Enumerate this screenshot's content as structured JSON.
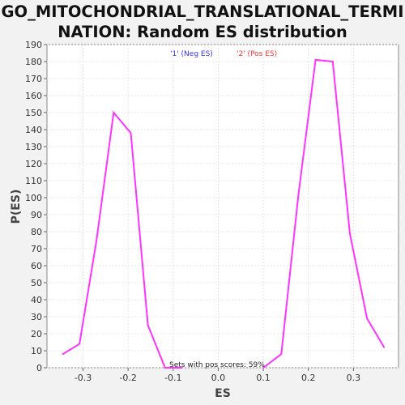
{
  "chart_data": {
    "type": "line",
    "title_line1": "GO_MITOCHONDRIAL_TRANSLATIONAL_TERMI",
    "title_line2": "NATION: Random ES distribution",
    "xlabel": "ES",
    "ylabel": "P(ES)",
    "xlim": [
      -0.38,
      0.4
    ],
    "ylim": [
      0,
      190
    ],
    "x_ticks": [
      "-0.3",
      "-0.2",
      "-0.1",
      "0.0",
      "0.1",
      "0.2",
      "0.3"
    ],
    "y_ticks": [
      "0",
      "10",
      "20",
      "30",
      "40",
      "50",
      "60",
      "70",
      "80",
      "90",
      "100",
      "110",
      "120",
      "130",
      "140",
      "150",
      "160",
      "170",
      "180",
      "190"
    ],
    "grid": true,
    "legend": [
      {
        "label": "'1' (Neg ES)",
        "color": "#3333ff"
      },
      {
        "label": "'2' (Pos ES)",
        "color": "#ff3333"
      }
    ],
    "annotation": "Sets with pos scores: 59%",
    "line_color": "#ff33ff",
    "series": [
      {
        "x": [
          -0.345,
          -0.308,
          -0.27,
          -0.232,
          -0.194,
          -0.156,
          -0.118,
          -0.08
        ],
        "y": [
          8,
          14,
          75,
          150,
          138,
          25,
          0,
          0
        ]
      },
      {
        "x": [
          0.1,
          0.14,
          0.178,
          0.216,
          0.254,
          0.292,
          0.33,
          0.368
        ],
        "y": [
          0,
          8,
          102,
          181,
          180,
          79,
          29,
          12
        ]
      }
    ]
  }
}
